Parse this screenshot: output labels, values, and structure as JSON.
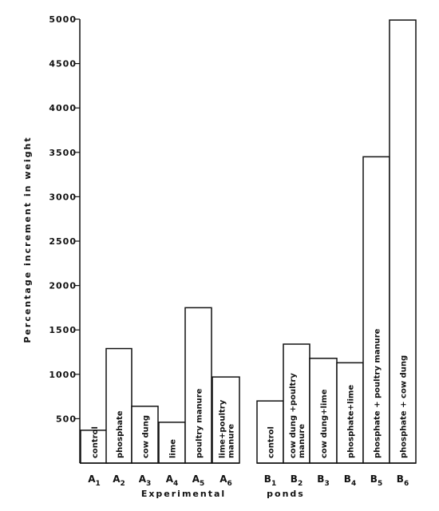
{
  "chart_data": {
    "type": "bar",
    "ylabel": "Percentage increment in weight",
    "xlabel_parts": [
      "Experimental",
      "ponds"
    ],
    "ylim": [
      0,
      5000
    ],
    "yticks": [
      "500",
      "1000",
      "1500",
      "2000",
      "2500",
      "3000",
      "3500",
      "4000",
      "4500",
      "5000"
    ],
    "categories": [
      {
        "letter": "A",
        "sub": "1",
        "label": "control",
        "value": 370
      },
      {
        "letter": "A",
        "sub": "2",
        "label": "phosphate",
        "value": 1290
      },
      {
        "letter": "A",
        "sub": "3",
        "label": "cow dung",
        "value": 640
      },
      {
        "letter": "A",
        "sub": "4",
        "label": "lime",
        "value": 460
      },
      {
        "letter": "A",
        "sub": "5",
        "label": "poultry   manure",
        "value": 1750
      },
      {
        "letter": "A",
        "sub": "6",
        "label": "lime+poultry|manure",
        "value": 970
      },
      {
        "letter": "B",
        "sub": "1",
        "label": "control",
        "value": 700
      },
      {
        "letter": "B",
        "sub": "2",
        "label": "cow dung +poultry|manure",
        "value": 1340
      },
      {
        "letter": "B",
        "sub": "3",
        "label": "cow dung+lime",
        "value": 1180
      },
      {
        "letter": "B",
        "sub": "4",
        "label": "phosphate+lime",
        "value": 1130
      },
      {
        "letter": "B",
        "sub": "5",
        "label": "phosphate + poultry   manure",
        "value": 3450
      },
      {
        "letter": "B",
        "sub": "6",
        "label": "phosphate + cow dung",
        "value": 4990
      }
    ]
  }
}
